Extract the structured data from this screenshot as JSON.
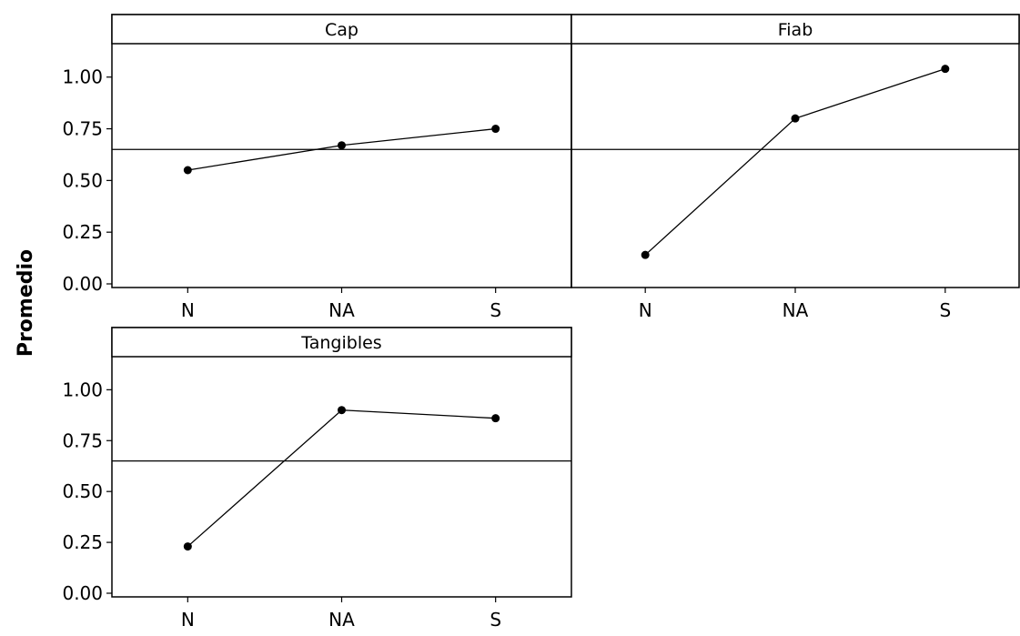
{
  "chart_data": {
    "type": "line",
    "ylabel": "Promedio",
    "ylim": [
      0,
      1.1
    ],
    "yticks": [
      "0.00",
      "0.25",
      "0.50",
      "0.75",
      "1.00"
    ],
    "categories": [
      "N",
      "NA",
      "S"
    ],
    "reference_line": 0.65,
    "panels": [
      {
        "title": "Cap",
        "values": [
          0.55,
          0.67,
          0.75
        ]
      },
      {
        "title": "Fiab",
        "values": [
          0.14,
          0.8,
          1.04
        ]
      },
      {
        "title": "Tangibles",
        "values": [
          0.23,
          0.9,
          0.86
        ]
      }
    ]
  }
}
